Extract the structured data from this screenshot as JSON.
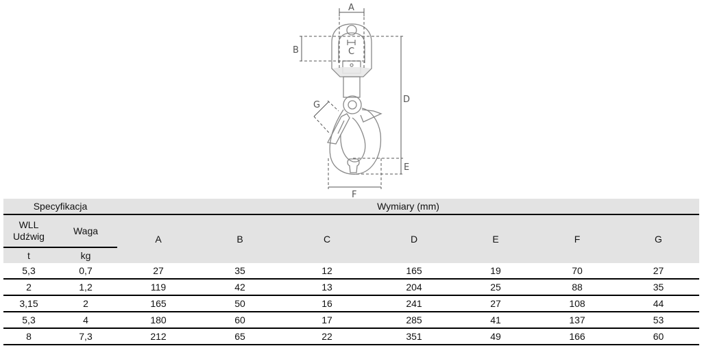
{
  "drawing": {
    "labels": {
      "A": "A",
      "B": "B",
      "C": "C",
      "D": "D",
      "E": "E",
      "F": "F",
      "G": "G"
    }
  },
  "table": {
    "group_headers": {
      "spec": "Specyfikacja",
      "dims": "Wymiary (mm)"
    },
    "spec_headers": {
      "wll": "WLL",
      "udzwig": "Udźwig",
      "waga": "Waga"
    },
    "dim_headers": [
      "A",
      "B",
      "C",
      "D",
      "E",
      "F",
      "G"
    ],
    "units": {
      "wll": "t",
      "waga": "kg"
    },
    "rows": [
      [
        "5,3",
        "0,7",
        "27",
        "35",
        "12",
        "165",
        "19",
        "70",
        "27"
      ],
      [
        "2",
        "1,2",
        "119",
        "42",
        "13",
        "204",
        "25",
        "88",
        "35"
      ],
      [
        "3,15",
        "2",
        "165",
        "50",
        "16",
        "241",
        "27",
        "108",
        "44"
      ],
      [
        "5,3",
        "4",
        "180",
        "60",
        "17",
        "285",
        "41",
        "137",
        "53"
      ],
      [
        "8",
        "7,3",
        "212",
        "65",
        "22",
        "351",
        "49",
        "166",
        "60"
      ]
    ]
  }
}
